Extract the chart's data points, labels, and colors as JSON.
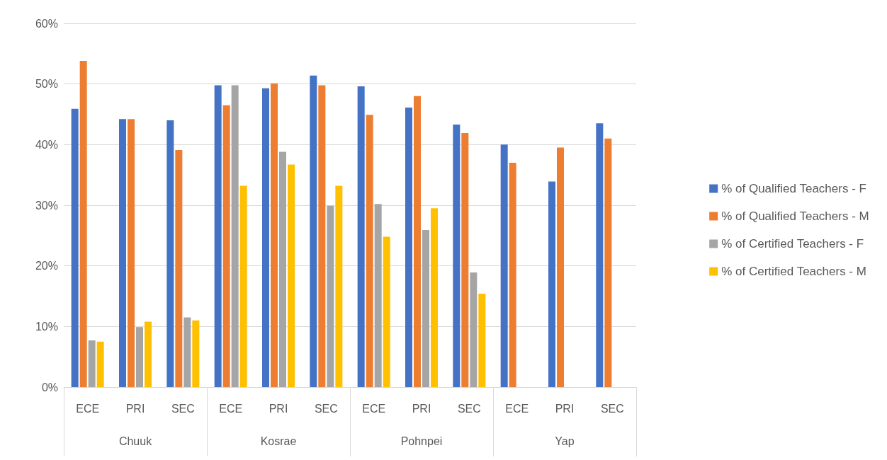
{
  "chart_data": {
    "type": "bar",
    "categories": [
      "ECE",
      "PRI",
      "SEC",
      "ECE",
      "PRI",
      "SEC",
      "ECE",
      "PRI",
      "SEC",
      "ECE",
      "PRI",
      "SEC"
    ],
    "annotations": [
      "Chuuk",
      "Kosrae",
      "Pohnpei",
      "Yap"
    ],
    "series": [
      {
        "name": "% of Qualified Teachers - F",
        "color": "#4472c4",
        "values": [
          45.9,
          44.2,
          44.0,
          49.8,
          49.3,
          51.4,
          49.6,
          46.1,
          43.3,
          40.0,
          33.9,
          43.5
        ]
      },
      {
        "name": "% of Qualified Teachers - M",
        "color": "#ed7d31",
        "values": [
          53.8,
          44.2,
          39.1,
          46.5,
          50.1,
          49.8,
          44.9,
          48.0,
          41.9,
          37.0,
          39.5,
          41.0
        ]
      },
      {
        "name": "% of Certified Teachers - F",
        "color": "#a5a5a5",
        "values": [
          7.7,
          9.9,
          11.5,
          49.8,
          38.8,
          29.9,
          30.2,
          25.9,
          18.9,
          null,
          null,
          null
        ]
      },
      {
        "name": "% of Certified Teachers - M",
        "color": "#ffc000",
        "values": [
          7.5,
          10.8,
          11.0,
          33.2,
          36.7,
          33.2,
          24.8,
          29.5,
          15.4,
          null,
          null,
          null
        ]
      }
    ],
    "ylim": [
      0,
      60
    ],
    "yticks": [
      {
        "value": 0,
        "label": "0%"
      },
      {
        "value": 10,
        "label": "10%"
      },
      {
        "value": 20,
        "label": "20%"
      },
      {
        "value": 30,
        "label": "30%"
      },
      {
        "value": 40,
        "label": "40%"
      },
      {
        "value": 50,
        "label": "50%"
      },
      {
        "value": 60,
        "label": "60%"
      }
    ],
    "grid": "y",
    "legend": "right"
  }
}
